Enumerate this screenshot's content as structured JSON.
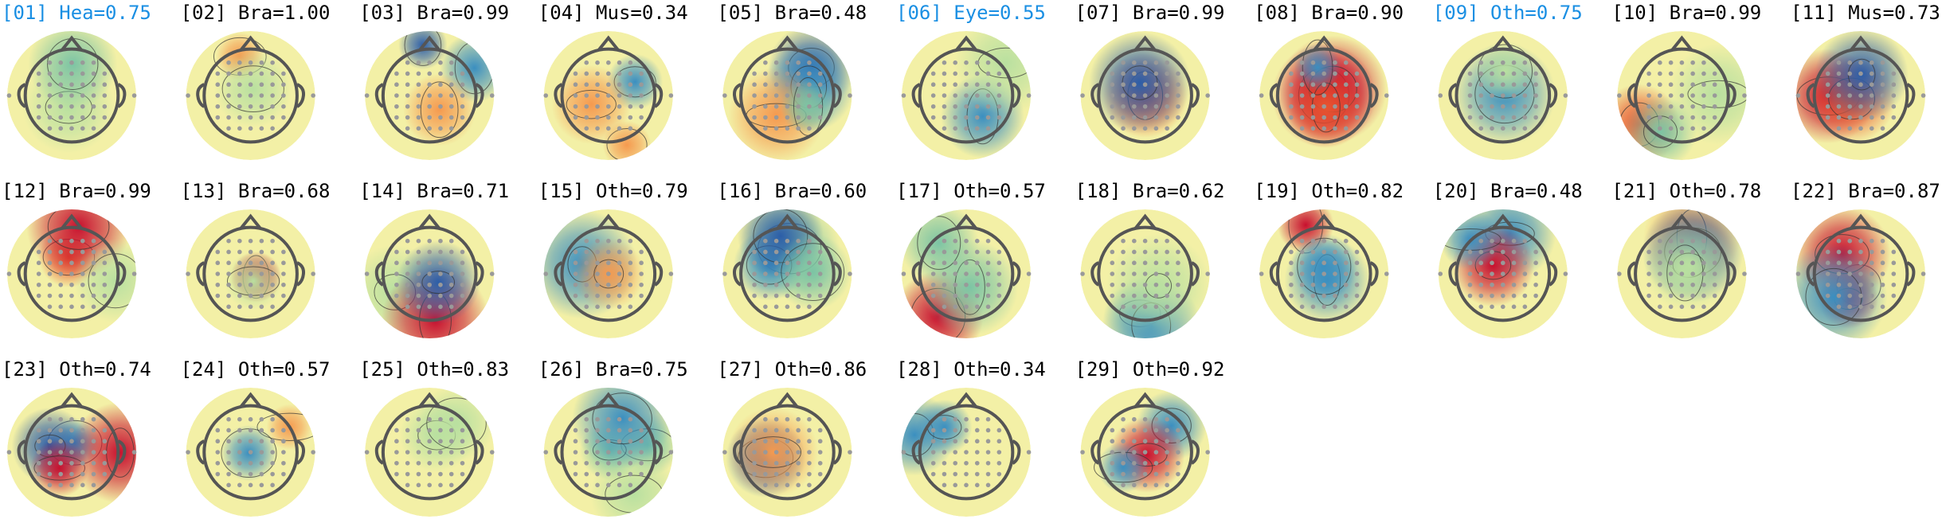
{
  "components": [
    {
      "label": "[01] Hea=0.75",
      "color": "#1a8fe3"
    },
    {
      "label": "[02] Bra=1.00",
      "color": "#000000"
    },
    {
      "label": "[03] Bra=0.99",
      "color": "#000000"
    },
    {
      "label": "[04] Mus=0.34",
      "color": "#000000"
    },
    {
      "label": "[05] Bra=0.48",
      "color": "#000000"
    },
    {
      "label": "[06] Eye=0.55",
      "color": "#1a8fe3"
    },
    {
      "label": "[07] Bra=0.99",
      "color": "#000000"
    },
    {
      "label": "[08] Bra=0.90",
      "color": "#000000"
    },
    {
      "label": "[09] Oth=0.75",
      "color": "#1a8fe3"
    },
    {
      "label": "[10] Bra=0.99",
      "color": "#000000"
    },
    {
      "label": "[11] Mus=0.73",
      "color": "#000000"
    },
    {
      "label": "[12] Bra=0.99",
      "color": "#000000"
    },
    {
      "label": "[13] Bra=0.68",
      "color": "#000000"
    },
    {
      "label": "[14] Bra=0.71",
      "color": "#000000"
    },
    {
      "label": "[15] Oth=0.79",
      "color": "#000000"
    },
    {
      "label": "[16] Bra=0.60",
      "color": "#000000"
    },
    {
      "label": "[17] Oth=0.57",
      "color": "#000000"
    },
    {
      "label": "[18] Bra=0.62",
      "color": "#000000"
    },
    {
      "label": "[19] Oth=0.82",
      "color": "#000000"
    },
    {
      "label": "[20] Bra=0.48",
      "color": "#000000"
    },
    {
      "label": "[21] Oth=0.78",
      "color": "#000000"
    },
    {
      "label": "[22] Bra=0.87",
      "color": "#000000"
    },
    {
      "label": "[23] Oth=0.74",
      "color": "#000000"
    },
    {
      "label": "[24] Oth=0.57",
      "color": "#000000"
    },
    {
      "label": "[25] Oth=0.83",
      "color": "#000000"
    },
    {
      "label": "[26] Bra=0.75",
      "color": "#000000"
    },
    {
      "label": "[27] Oth=0.86",
      "color": "#000000"
    },
    {
      "label": "[28] Oth=0.34",
      "color": "#000000"
    },
    {
      "label": "[29] Oth=0.92",
      "color": "#000000"
    }
  ]
}
